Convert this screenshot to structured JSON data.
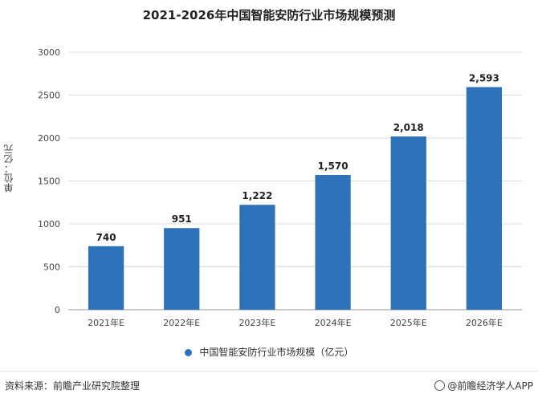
{
  "chart_data": {
    "type": "bar",
    "title": "2021-2026年中国智能安防行业市场规模预测",
    "ylabel": "单位：亿元",
    "xlabel": "",
    "categories": [
      "2021年E",
      "2022年E",
      "2023年E",
      "2024年E",
      "2025年E",
      "2026年E"
    ],
    "series": [
      {
        "name": "中国智能安防行业市场规模（亿元）",
        "values": [
          740,
          951,
          1222,
          1570,
          2018,
          2593
        ],
        "data_labels": [
          "740",
          "951",
          "1,222",
          "1,570",
          "2,018",
          "2,593"
        ],
        "color": "#2e72ba"
      }
    ],
    "ylim": [
      0,
      3000
    ],
    "yticks": [
      0,
      500,
      1000,
      1500,
      2000,
      2500,
      3000
    ],
    "grid": true,
    "legend_position": "bottom"
  },
  "footer": {
    "source": "资料来源：前瞻产业研究院整理",
    "credit": "@前瞻经济学人APP"
  },
  "icons": {
    "credit": "at-icon"
  }
}
